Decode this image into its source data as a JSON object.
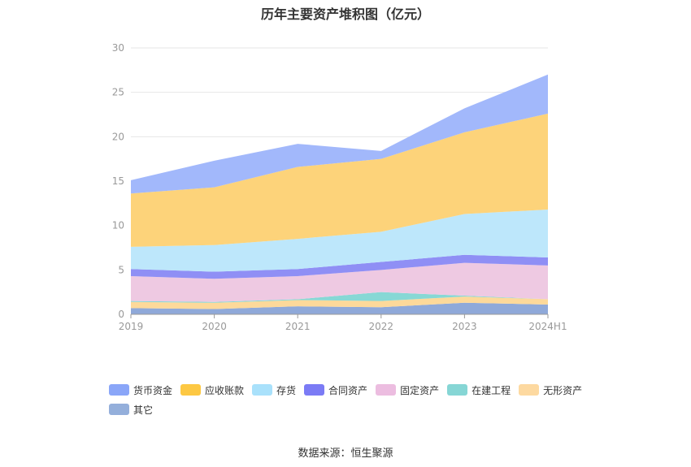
{
  "chart_data": {
    "type": "area",
    "stacked": true,
    "title": "历年主要资产堆积图（亿元）",
    "x": [
      "2019",
      "2020",
      "2021",
      "2022",
      "2023",
      "2024H1"
    ],
    "ylim": [
      0,
      30
    ],
    "yticks": [
      0,
      5,
      10,
      15,
      20,
      25,
      30
    ],
    "grid": true,
    "legend_position": "bottom",
    "series": [
      {
        "name": "其它",
        "color": "#8fa9d9",
        "values": [
          0.7,
          0.6,
          0.9,
          0.8,
          1.3,
          1.1
        ]
      },
      {
        "name": "无形资产",
        "color": "#fdd99a",
        "values": [
          0.7,
          0.7,
          0.7,
          0.7,
          0.7,
          0.6
        ]
      },
      {
        "name": "在建工程",
        "color": "#87d8d5",
        "values": [
          0.1,
          0.1,
          0.1,
          1.0,
          0.1,
          0.0
        ]
      },
      {
        "name": "固定资产",
        "color": "#eec9e2",
        "values": [
          2.8,
          2.6,
          2.6,
          2.5,
          3.7,
          3.8
        ]
      },
      {
        "name": "合同资产",
        "color": "#8f8ff5",
        "values": [
          0.8,
          0.8,
          0.8,
          0.9,
          0.9,
          0.9
        ]
      },
      {
        "name": "存货",
        "color": "#bde7fb",
        "values": [
          2.5,
          3.0,
          3.4,
          3.4,
          4.6,
          5.4
        ]
      },
      {
        "name": "应收账款",
        "color": "#fdd37a",
        "values": [
          6.0,
          6.5,
          8.1,
          8.2,
          9.2,
          10.8
        ]
      },
      {
        "name": "货币资金",
        "color": "#a2b8fb",
        "values": [
          1.5,
          3.0,
          2.6,
          0.9,
          2.7,
          4.4
        ]
      }
    ]
  },
  "legend": {
    "items": [
      {
        "label": "货币资金",
        "color": "#8aa6f8"
      },
      {
        "label": "应收账款",
        "color": "#fdc843"
      },
      {
        "label": "存货",
        "color": "#a9e1fb"
      },
      {
        "label": "合同资产",
        "color": "#7b7bf5"
      },
      {
        "label": "固定资产",
        "color": "#ecbde0"
      },
      {
        "label": "在建工程",
        "color": "#86d6d5"
      },
      {
        "label": "无形资产",
        "color": "#fdd9a0"
      },
      {
        "label": "其它",
        "color": "#94afdb"
      }
    ]
  },
  "source": "数据来源：恒生聚源"
}
